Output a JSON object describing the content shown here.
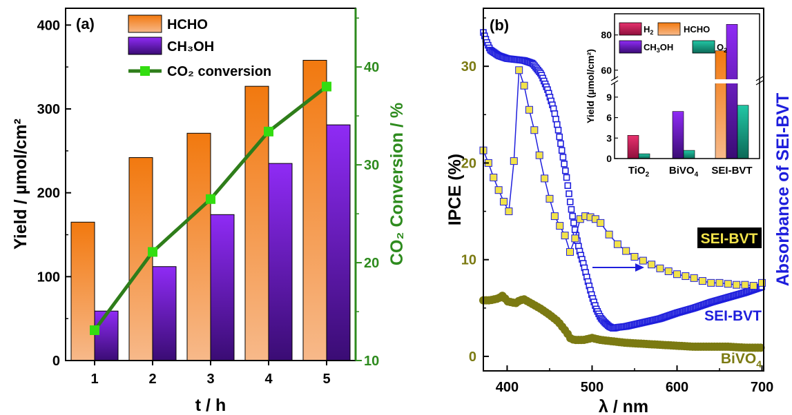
{
  "chart_data": [
    {
      "panel_label": "(a)",
      "type": "bar",
      "categories": [
        "1",
        "2",
        "3",
        "4",
        "5"
      ],
      "xlabel": "t / h",
      "ylabel": "Yield / µmol/cm²",
      "ylim": [
        0,
        420
      ],
      "yticks": [
        "0",
        "100",
        "200",
        "300",
        "400"
      ],
      "y2label": "CO₂ Conversion / %",
      "y2lim": [
        10,
        46
      ],
      "y2ticks": [
        "10",
        "20",
        "30",
        "40"
      ],
      "series": [
        {
          "name": "HCHO",
          "values": [
            165,
            242,
            271,
            327,
            358
          ]
        },
        {
          "name": "CH₃OH",
          "values": [
            59,
            112,
            174,
            235,
            281
          ]
        }
      ],
      "line_series": {
        "name": "CO₂ conversion",
        "axis": "right",
        "values": [
          13.1,
          21.1,
          26.5,
          33.4,
          38.0
        ]
      },
      "colors": {
        "hcho": "#F28A2E",
        "ch3oh": "#7A1FE0",
        "line": "#2E7D1A",
        "marker": "#33DD11",
        "right_axis": "#2E8B1E"
      }
    },
    {
      "panel_label": "(b)",
      "type": "line",
      "xlabel": "λ / nm",
      "ylabel": "IPCE (%)",
      "y2label": "Absorbance of SEI-BVT",
      "xlim": [
        372,
        702
      ],
      "xticks": [
        "400",
        "500",
        "600",
        "700"
      ],
      "ylim": [
        -1.5,
        36
      ],
      "yticks": [
        "0",
        "10",
        "20",
        "30"
      ],
      "series": [
        {
          "name": "SEI-BVT",
          "style": "yellow-square",
          "x": [
            372,
            378,
            384,
            390,
            396,
            402,
            408,
            414,
            420,
            426,
            432,
            438,
            444,
            450,
            456,
            462,
            468,
            474,
            480,
            486,
            492,
            498,
            504,
            510,
            520,
            530,
            540,
            550,
            560,
            570,
            580,
            590,
            600,
            610,
            620,
            630,
            640,
            650,
            660,
            670,
            680,
            690,
            700
          ],
          "y": [
            21.3,
            20.0,
            18.5,
            17.2,
            16.0,
            15.0,
            20.2,
            29.6,
            28.0,
            25.5,
            23.4,
            20.8,
            18.4,
            16.3,
            14.5,
            13.5,
            12.5,
            10.8,
            12.2,
            14.2,
            14.5,
            14.4,
            14.2,
            13.8,
            12.6,
            11.6,
            10.9,
            10.3,
            9.9,
            9.5,
            9.1,
            8.8,
            8.5,
            8.3,
            8.1,
            7.8,
            7.6,
            7.6,
            7.5,
            7.4,
            7.4,
            7.3,
            7.6
          ]
        },
        {
          "name": "BiVO₄",
          "style": "olive-circle",
          "x": [
            372,
            380,
            390,
            395,
            400,
            410,
            415,
            420,
            430,
            440,
            450,
            460,
            470,
            475,
            480,
            490,
            500,
            510,
            520,
            540,
            560,
            580,
            600,
            620,
            640,
            660,
            680,
            700
          ],
          "y": [
            5.8,
            5.8,
            6.0,
            6.3,
            5.7,
            5.5,
            5.8,
            5.9,
            5.4,
            4.9,
            4.3,
            3.6,
            2.5,
            1.8,
            1.7,
            1.7,
            1.9,
            1.7,
            1.6,
            1.4,
            1.3,
            1.2,
            1.1,
            1.0,
            1.0,
            1.0,
            0.9,
            0.9
          ]
        },
        {
          "name": "SEI-BVT",
          "style": "blue-open-square",
          "x": [
            372,
            376,
            380,
            385,
            390,
            400,
            410,
            420,
            430,
            440,
            448,
            455,
            460,
            465,
            470,
            475,
            480,
            485,
            490,
            495,
            500,
            505,
            510,
            515,
            520,
            525,
            530,
            540,
            550,
            560,
            580,
            600,
            620,
            640,
            660,
            680,
            700
          ],
          "y": [
            33.5,
            32.5,
            31.7,
            31.4,
            31.1,
            30.8,
            30.7,
            30.6,
            30.3,
            29.2,
            27.5,
            25.5,
            23.5,
            21.0,
            18.5,
            15.5,
            13.0,
            11.0,
            9.5,
            7.8,
            6.2,
            4.9,
            4.0,
            3.5,
            3.1,
            2.9,
            3.0,
            3.1,
            3.3,
            3.5,
            3.9,
            4.5,
            5.0,
            5.6,
            6.1,
            6.6,
            7.2
          ]
        }
      ],
      "annotations": [
        "SEI-BVT",
        "SEI-BVT",
        "BiVO₄"
      ],
      "colors": {
        "ipce_axis": "#7B7A12",
        "sei": "#1E1EDC",
        "bivo4": "#7B7A12",
        "sei_marker": "#F2E34A"
      },
      "inset": {
        "type": "bar",
        "ylabel": "Yield (µmol/cm²)",
        "categories": [
          "TiO₂",
          "BiVO₄",
          "SEI-BVT"
        ],
        "lower_yticks": [
          "0",
          "3",
          "6",
          "9"
        ],
        "upper_yticks": [
          "60",
          "80"
        ],
        "series": [
          {
            "name": "H₂",
            "values": [
              3.4,
              0,
              0
            ]
          },
          {
            "name": "HCHO",
            "values": [
              0,
              0,
              71
            ]
          },
          {
            "name": "CH₃OH",
            "values": [
              0,
              6.9,
              86
            ]
          },
          {
            "name": "O₂",
            "values": [
              0.7,
              1.2,
              7.8
            ]
          }
        ],
        "colors": {
          "h2": "#D01E5A",
          "hcho": "#F28A2E",
          "ch3oh": "#7A1FE0",
          "o2": "#17A88C"
        }
      }
    }
  ]
}
